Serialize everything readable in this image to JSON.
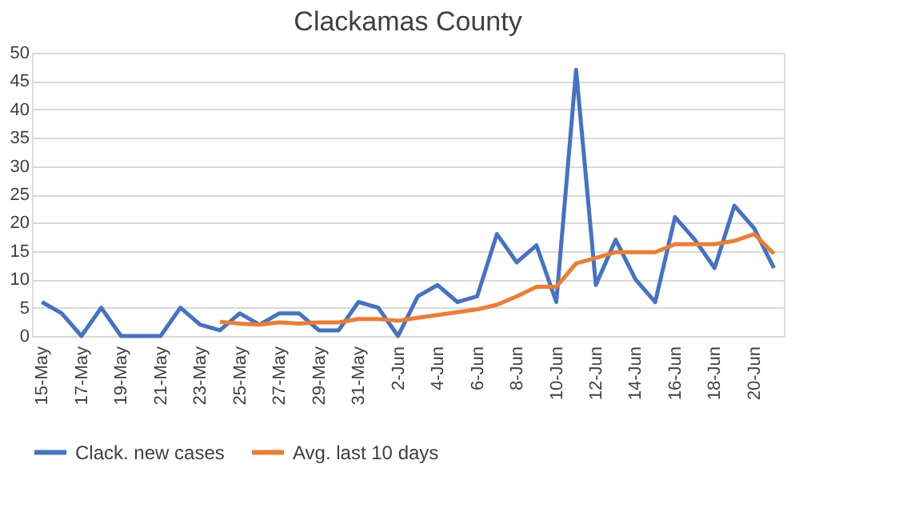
{
  "chart_data": {
    "type": "line",
    "title": "Clackamas County",
    "categories": [
      "15-May",
      null,
      "17-May",
      null,
      "19-May",
      null,
      "21-May",
      null,
      "23-May",
      null,
      "25-May",
      null,
      "27-May",
      null,
      "29-May",
      null,
      "31-May",
      null,
      "2-Jun",
      null,
      "4-Jun",
      null,
      "6-Jun",
      null,
      "8-Jun",
      null,
      "10-Jun",
      null,
      "12-Jun",
      null,
      "14-Jun",
      null,
      "16-Jun",
      null,
      "18-Jun",
      null,
      "20-Jun",
      null
    ],
    "series": [
      {
        "name": "Clack. new cases",
        "color": "#4472c4",
        "values": [
          6,
          4,
          0,
          5,
          0,
          0,
          0,
          5,
          2,
          1,
          4,
          2,
          4,
          4,
          1,
          1,
          6,
          5,
          0,
          7,
          9,
          6,
          7,
          18,
          13,
          16,
          6,
          47,
          9,
          17,
          10,
          6,
          21,
          17,
          12,
          23,
          19,
          12
        ]
      },
      {
        "name": "Avg. last 10 days",
        "color": "#ed7d31",
        "values": [
          null,
          null,
          null,
          null,
          null,
          null,
          null,
          null,
          null,
          2.5,
          2.2,
          2.0,
          2.4,
          2.2,
          2.4,
          2.4,
          3.0,
          3.0,
          2.7,
          3.2,
          3.7,
          4.2,
          4.7,
          5.5,
          7.0,
          8.7,
          8.7,
          12.8,
          13.8,
          14.8,
          14.8,
          14.8,
          16.2,
          16.2,
          16.2,
          16.8,
          18,
          14.5
        ]
      }
    ],
    "ylim": [
      0,
      50
    ],
    "yticks": [
      0,
      5,
      10,
      15,
      20,
      25,
      30,
      35,
      40,
      45,
      50
    ],
    "grid": "y",
    "legend": "bottom",
    "marker": "none",
    "line_style": "solid"
  }
}
